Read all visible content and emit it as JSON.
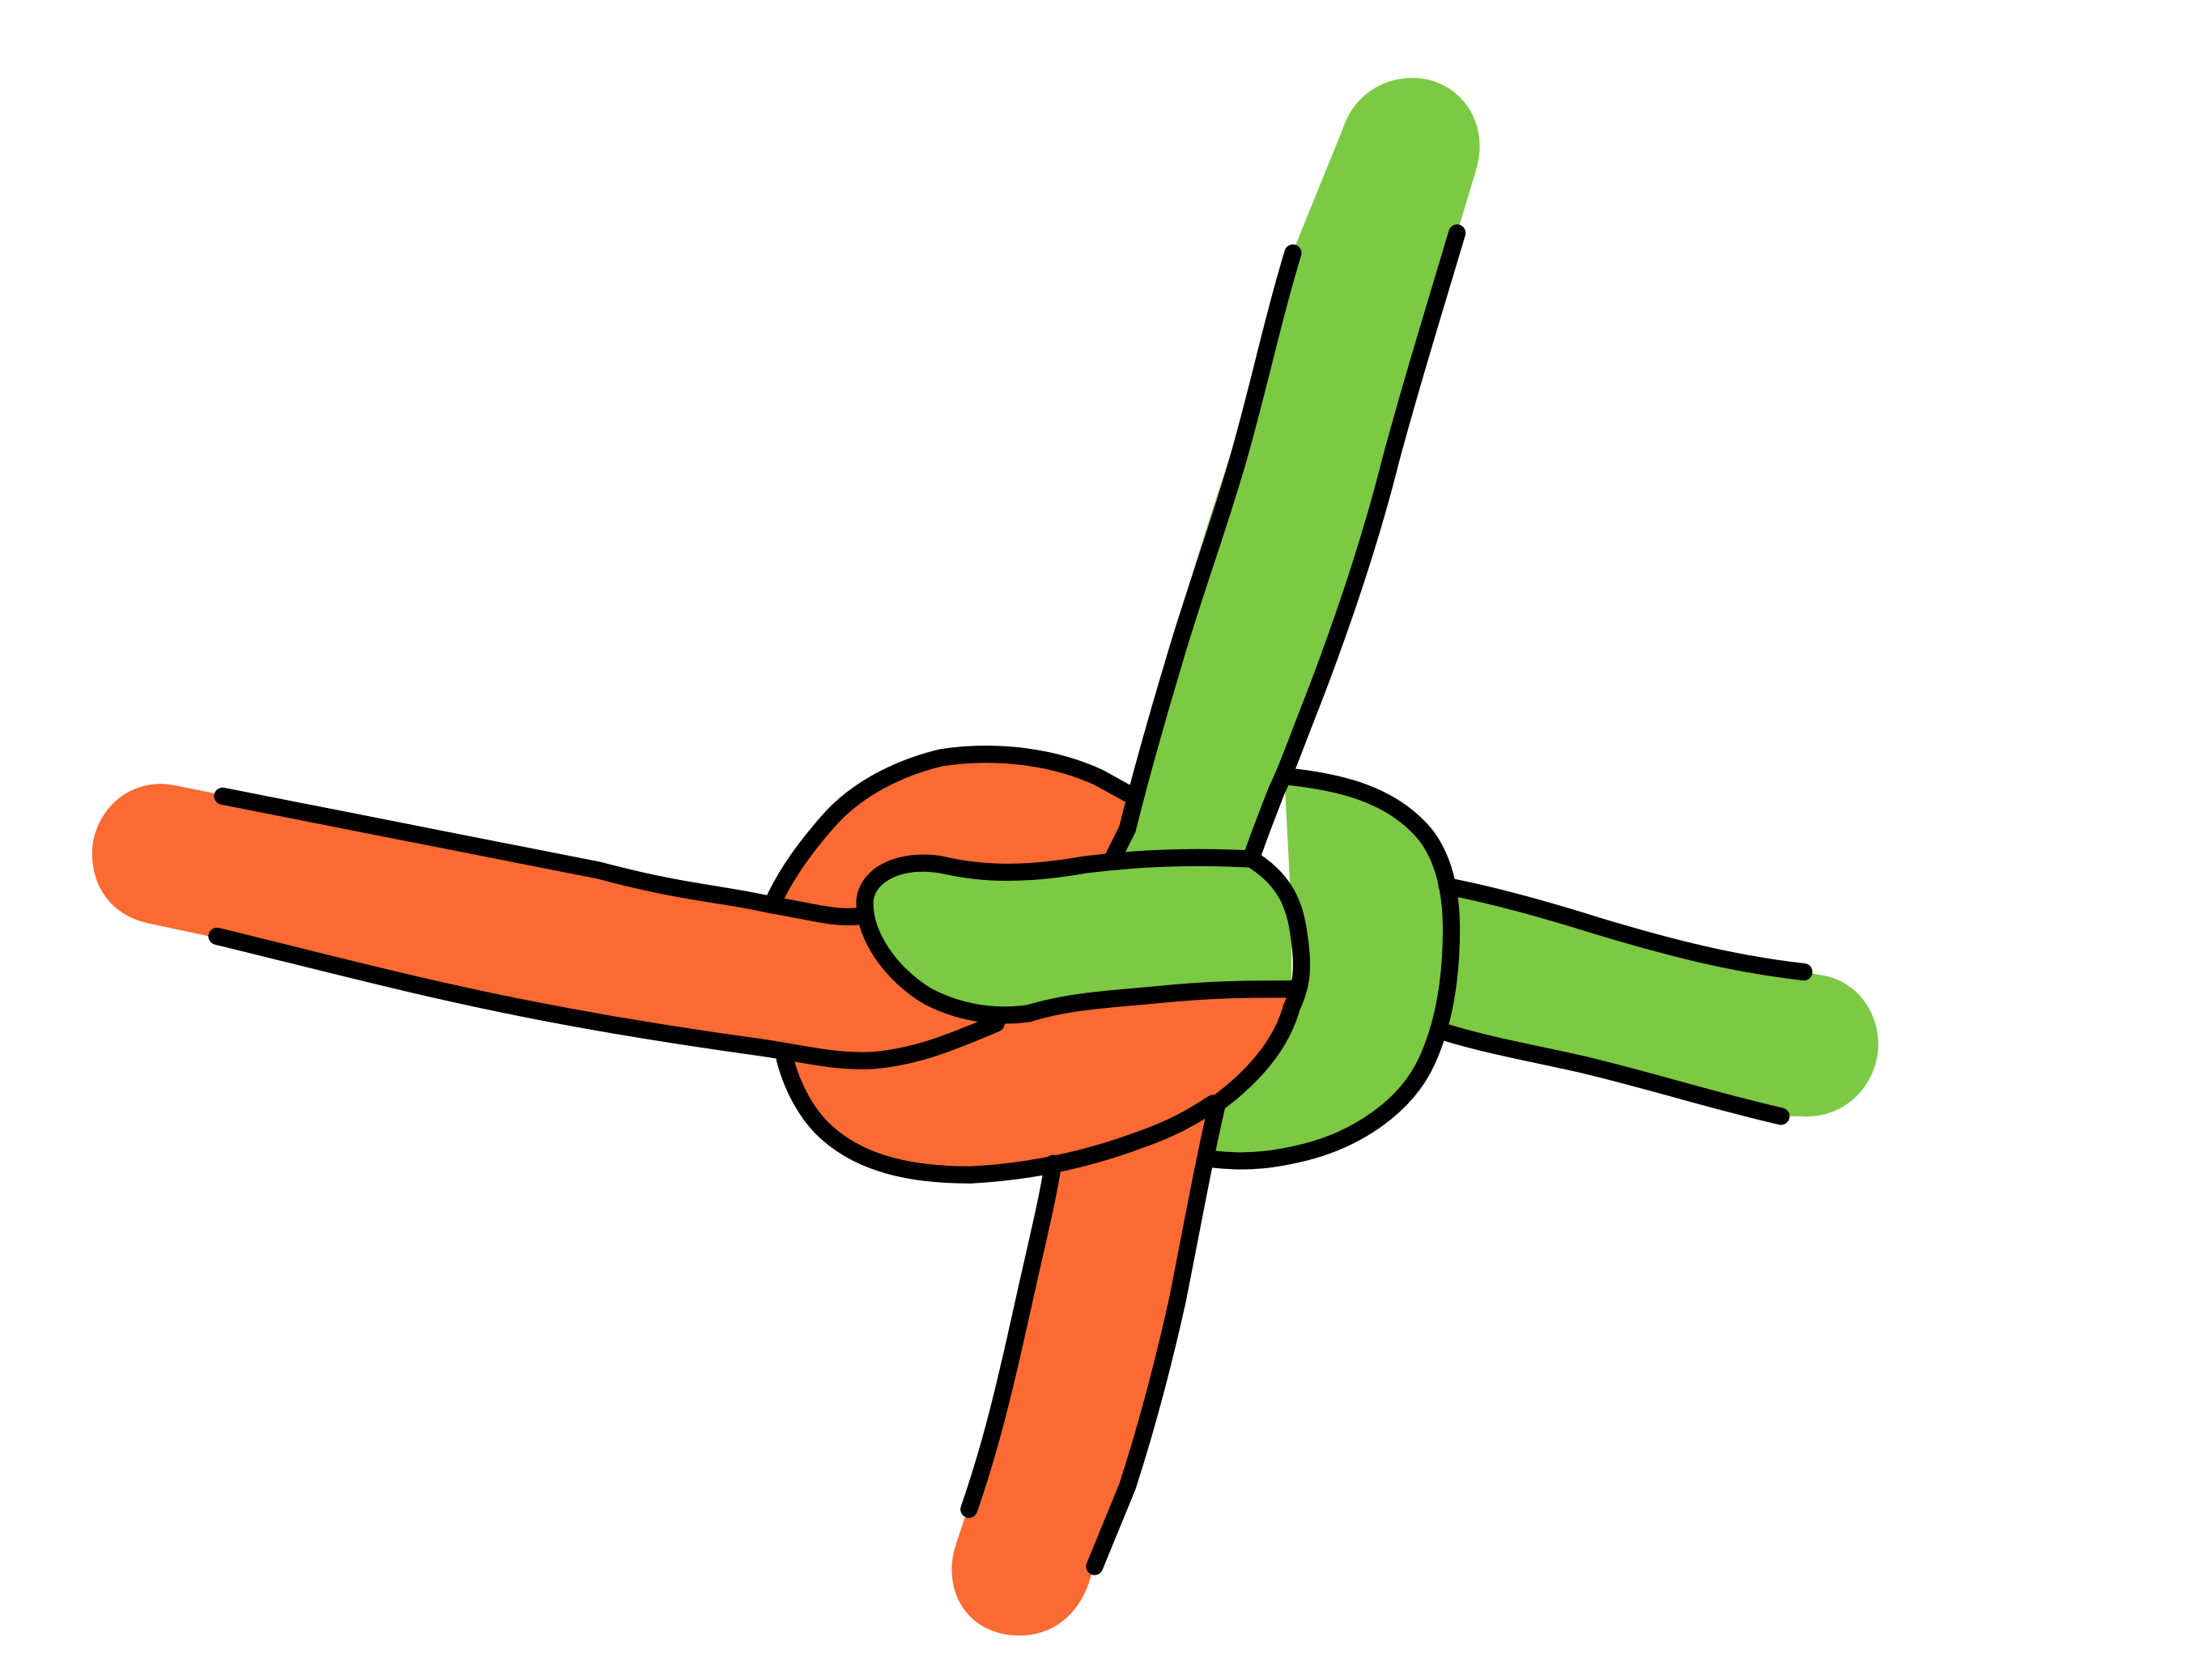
{
  "diagram": {
    "background_color": "#ffffff",
    "outline_color": "#000000",
    "ropes": [
      {
        "id": "orange-rope",
        "color": "#fc6a34",
        "ends": [
          "left",
          "bottom"
        ]
      },
      {
        "id": "green-rope",
        "color": "#7cc943",
        "ends": [
          "top",
          "right"
        ]
      }
    ]
  }
}
